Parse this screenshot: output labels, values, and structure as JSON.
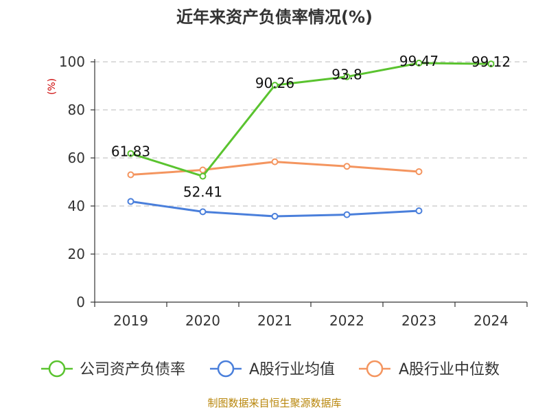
{
  "chart_data": {
    "type": "line",
    "title": "近年来资产负债率情况(%)",
    "ylabel": "(%)",
    "xlabel": "",
    "categories": [
      "2019",
      "2020",
      "2021",
      "2022",
      "2023",
      "2024"
    ],
    "ylim": [
      0,
      100
    ],
    "yticks": [
      0,
      20,
      40,
      60,
      80,
      100
    ],
    "grid": true,
    "legend_position": "bottom",
    "series": [
      {
        "name": "公司资产负债率",
        "color": "#5ac32f",
        "values": [
          61.83,
          52.41,
          90.26,
          93.8,
          99.47,
          99.12
        ],
        "labels": [
          "61.83",
          "52.41",
          "90.26",
          "93.8",
          "99.47",
          "99.12"
        ]
      },
      {
        "name": "A股行业均值",
        "color": "#4a7fdb",
        "values": [
          41.9,
          37.6,
          35.7,
          36.4,
          38.0,
          null
        ]
      },
      {
        "name": "A股行业中位数",
        "color": "#f4955f",
        "values": [
          53.0,
          55.0,
          58.4,
          56.5,
          54.3,
          null
        ]
      }
    ]
  },
  "source": "制图数据来自恒生聚源数据库"
}
